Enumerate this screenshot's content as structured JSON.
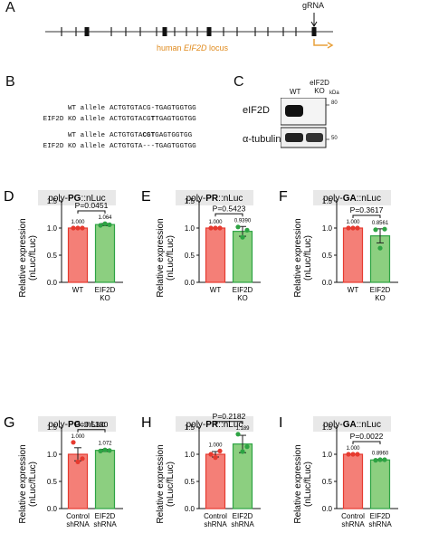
{
  "colors": {
    "red": "#f47f77",
    "redDark": "#e63a2f",
    "green": "#8ccf80",
    "greenDark": "#2da343",
    "orange": "#e8a03a",
    "grey": "#e8e8e8"
  },
  "panelA": {
    "label": "A",
    "grna": "gRNA",
    "locus_prefix": "human ",
    "locus_gene": "EIF2D",
    "locus_suffix": " locus"
  },
  "panelB": {
    "label": "B",
    "rows": [
      {
        "allele": "WT allele",
        "seq": "ACTGTGTACG-TGAGTGGTGG"
      },
      {
        "allele": "EIF2D KO allele",
        "seq_pre": "ACTGTGTACG",
        "seq_bold": "T",
        "seq_post": "TGAGTGGTGG"
      },
      {
        "allele": "WT allele",
        "seq_pre": "ACTGTGTA",
        "seq_bold": "CGT",
        "seq_post": "GAGTGGTGG"
      },
      {
        "allele": "EIF2D KO allele",
        "seq": "ACTGTGTA---TGAGTGGTGG"
      }
    ]
  },
  "panelC": {
    "label": "C",
    "lane1": "WT",
    "lane2a": "eIF2D",
    "lane2b": "KO",
    "kda": "kDa",
    "row1": "eIF2D",
    "row2": "α-tubulin",
    "mw1": "80",
    "mw2": "50"
  },
  "charts": [
    {
      "id": "D",
      "label": "D",
      "title_pre": "poly-",
      "title_bold": "PG",
      "title_post": "::nLuc",
      "ylabel1": "Relative expression",
      "ylabel2": "(nLuc/fLuc)",
      "pval": "P=0.0451",
      "bar_labels": [
        "1.000",
        "1.064"
      ],
      "cats": [
        [
          "WT"
        ],
        [
          "EIF2D",
          "KO"
        ]
      ]
    },
    {
      "id": "E",
      "label": "E",
      "title_pre": "poly-",
      "title_bold": "PR",
      "title_post": "::nLuc",
      "ylabel1": "Relative expression",
      "ylabel2": "(nLuc/fLuc)",
      "pval": "P=0.5423",
      "bar_labels": [
        "1.000",
        "0.9390"
      ],
      "cats": [
        [
          "WT"
        ],
        [
          "EIF2D",
          "KO"
        ]
      ]
    },
    {
      "id": "F",
      "label": "F",
      "title_pre": "poly-",
      "title_bold": "GA",
      "title_post": "::nLuc",
      "ylabel1": "Relative expression",
      "ylabel2": "(nLuc/fLuc)",
      "pval": "P=0.3617",
      "bar_labels": [
        "1.000",
        "0.8561"
      ],
      "cats": [
        [
          "WT"
        ],
        [
          "EIF2D",
          "KO"
        ]
      ]
    },
    {
      "id": "G",
      "label": "G",
      "title_pre": "poly-",
      "title_bold": "PG",
      "title_post": "::nLuc",
      "ylabel1": "Relative expression",
      "ylabel2": "(nLuc/fLuc)",
      "pval": "P=0.5330",
      "bar_labels": [
        "1.000",
        "1.072"
      ],
      "cats": [
        [
          "Control",
          "shRNA"
        ],
        [
          "EIF2D",
          "shRNA"
        ]
      ]
    },
    {
      "id": "H",
      "label": "H",
      "title_pre": "poly-",
      "title_bold": "PR",
      "title_post": "::nLuc",
      "ylabel1": "Relative expression",
      "ylabel2": "(nLuc/fLuc)",
      "pval": "P=0.2182",
      "bar_labels": [
        "1.000",
        "1.189"
      ],
      "cats": [
        [
          "Control",
          "shRNA"
        ],
        [
          "EIF2D",
          "shRNA"
        ]
      ]
    },
    {
      "id": "I",
      "label": "I",
      "title_pre": "poly-",
      "title_bold": "GA",
      "title_post": "::nLuc",
      "ylabel1": "Relative expression",
      "ylabel2": "(nLuc/fLuc)",
      "pval": "P=0.0022",
      "bar_labels": [
        "1.000",
        "0.8960"
      ],
      "cats": [
        [
          "Control",
          "shRNA"
        ],
        [
          "EIF2D",
          "shRNA"
        ]
      ]
    }
  ],
  "chart_data": [
    {
      "type": "bar",
      "panel": "D",
      "title": "poly-PG::nLuc",
      "ylabel": "Relative expression (nLuc/fLuc)",
      "categories": [
        "WT",
        "EIF2D KO"
      ],
      "values": [
        1.0,
        1.064
      ],
      "errors": [
        0.0,
        0.02
      ],
      "points": [
        [
          1.0,
          1.0,
          1.0
        ],
        [
          1.05,
          1.08,
          1.06
        ]
      ],
      "ylim": [
        0,
        1.5
      ],
      "yticks": [
        "0.0",
        "0.5",
        "1.0",
        "1.5"
      ],
      "pvalue": "P=0.0451"
    },
    {
      "type": "bar",
      "panel": "E",
      "title": "poly-PR::nLuc",
      "ylabel": "Relative expression (nLuc/fLuc)",
      "categories": [
        "WT",
        "EIF2D KO"
      ],
      "values": [
        1.0,
        0.939
      ],
      "errors": [
        0.0,
        0.09
      ],
      "points": [
        [
          1.0,
          1.0,
          1.0
        ],
        [
          1.02,
          0.83,
          0.96
        ]
      ],
      "ylim": [
        0,
        1.5
      ],
      "yticks": [
        "0.0",
        "0.5",
        "1.0",
        "1.5"
      ],
      "pvalue": "P=0.5423"
    },
    {
      "type": "bar",
      "panel": "F",
      "title": "poly-GA::nLuc",
      "ylabel": "Relative expression (nLuc/fLuc)",
      "categories": [
        "WT",
        "EIF2D KO"
      ],
      "values": [
        1.0,
        0.8561
      ],
      "errors": [
        0.0,
        0.13
      ],
      "points": [
        [
          1.0,
          1.0,
          1.0
        ],
        [
          0.97,
          0.63,
          0.98
        ]
      ],
      "ylim": [
        0,
        1.5
      ],
      "yticks": [
        "0.0",
        "0.5",
        "1.0",
        "1.5"
      ],
      "pvalue": "P=0.3617"
    },
    {
      "type": "bar",
      "panel": "G",
      "title": "poly-PG::nLuc",
      "ylabel": "Relative expression (nLuc/fLuc)",
      "categories": [
        "Control shRNA",
        "EIF2D shRNA"
      ],
      "values": [
        1.0,
        1.072
      ],
      "errors": [
        0.12,
        0.02
      ],
      "points": [
        [
          1.22,
          0.86,
          0.92
        ],
        [
          1.06,
          1.08,
          1.07
        ]
      ],
      "ylim": [
        0,
        1.5
      ],
      "yticks": [
        "0.0",
        "0.5",
        "1.0",
        "1.5"
      ],
      "pvalue": "P=0.5330"
    },
    {
      "type": "bar",
      "panel": "H",
      "title": "poly-PR::nLuc",
      "ylabel": "Relative expression (nLuc/fLuc)",
      "categories": [
        "Control shRNA",
        "EIF2D shRNA"
      ],
      "values": [
        1.0,
        1.189
      ],
      "errors": [
        0.05,
        0.16
      ],
      "points": [
        [
          1.0,
          0.94,
          1.06
        ],
        [
          1.37,
          1.05,
          1.14
        ]
      ],
      "ylim": [
        0,
        1.5
      ],
      "yticks": [
        "0.0",
        "0.5",
        "1.0",
        "1.5"
      ],
      "pvalue": "P=0.2182"
    },
    {
      "type": "bar",
      "panel": "I",
      "title": "poly-GA::nLuc",
      "ylabel": "Relative expression (nLuc/fLuc)",
      "categories": [
        "Control shRNA",
        "EIF2D shRNA"
      ],
      "values": [
        1.0,
        0.896
      ],
      "errors": [
        0.0,
        0.01
      ],
      "points": [
        [
          1.0,
          1.0,
          1.0
        ],
        [
          0.89,
          0.9,
          0.9
        ]
      ],
      "ylim": [
        0,
        1.5
      ],
      "yticks": [
        "0.0",
        "0.5",
        "1.0",
        "1.5"
      ],
      "pvalue": "P=0.0022"
    }
  ]
}
